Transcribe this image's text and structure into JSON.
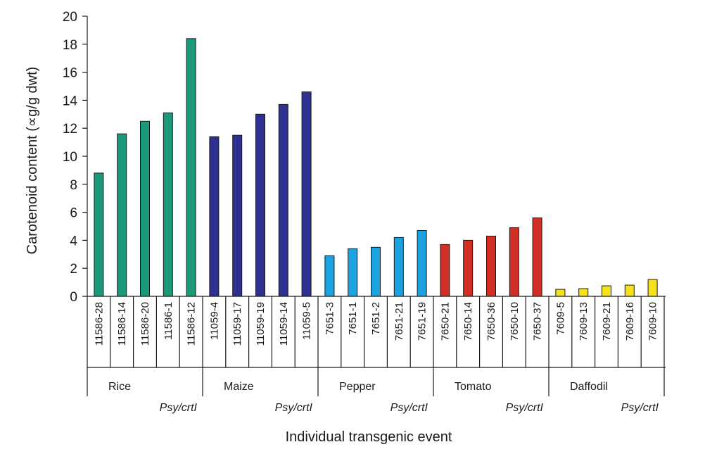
{
  "chart_data": {
    "type": "bar",
    "title": "",
    "ylabel": "Carotenoid content (∝g/g dwt)",
    "xlabel": "Individual transgenic event",
    "ylim": [
      0,
      20
    ],
    "yticks": [
      0,
      2,
      4,
      6,
      8,
      10,
      12,
      14,
      16,
      18,
      20
    ],
    "grid": false,
    "legend": "none",
    "groups": [
      {
        "name": "Rice",
        "construct": "Psy/crtI",
        "color": "#1a9a7a",
        "categories": [
          "11586-28",
          "11586-14",
          "11586-20",
          "11586-1",
          "11586-12"
        ],
        "values": [
          8.8,
          11.6,
          12.5,
          13.1,
          18.4
        ]
      },
      {
        "name": "Maize",
        "construct": "Psy/crtI",
        "color": "#2e3192",
        "categories": [
          "11059-4",
          "11059-17",
          "11059-19",
          "11059-14",
          "11059-5"
        ],
        "values": [
          11.4,
          11.5,
          13.0,
          13.7,
          14.6
        ]
      },
      {
        "name": "Pepper",
        "construct": "Psy/crtI",
        "color": "#1aa3e0",
        "categories": [
          "7651-3",
          "7651-1",
          "7651-2",
          "7651-21",
          "7651-19"
        ],
        "values": [
          2.9,
          3.4,
          3.5,
          4.2,
          4.7
        ]
      },
      {
        "name": "Tomato",
        "construct": "Psy/crtI",
        "color": "#d12f25",
        "categories": [
          "7650-21",
          "7650-14",
          "7650-36",
          "7650-10",
          "7650-37"
        ],
        "values": [
          3.7,
          4.0,
          4.3,
          4.9,
          5.6
        ]
      },
      {
        "name": "Daffodil",
        "construct": "Psy/crtI",
        "color": "#f4e21c",
        "categories": [
          "7609-5",
          "7609-13",
          "7609-21",
          "7609-16",
          "7609-10"
        ],
        "values": [
          0.5,
          0.55,
          0.75,
          0.8,
          1.2
        ]
      }
    ]
  }
}
